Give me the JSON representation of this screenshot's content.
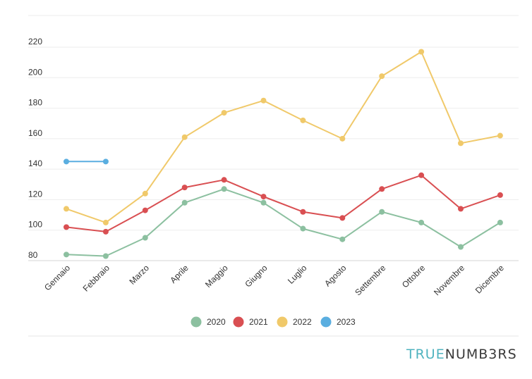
{
  "brand": {
    "part1": "TRUE",
    "part2": "NUMB3RS"
  },
  "chart_data": {
    "type": "line",
    "categories": [
      "Gennaio",
      "Febbraio",
      "Marzo",
      "Aprile",
      "Maggio",
      "Giugno",
      "Luglio",
      "Agosto",
      "Settembre",
      "Ottobre",
      "Novembre",
      "Dicembre"
    ],
    "series": [
      {
        "name": "2020",
        "color": "#8cc0a0",
        "values": [
          84,
          83,
          95,
          118,
          127,
          118,
          101,
          94,
          112,
          105,
          89,
          105
        ]
      },
      {
        "name": "2021",
        "color": "#d94f52",
        "values": [
          102,
          99,
          113,
          128,
          133,
          122,
          112,
          108,
          127,
          136,
          114,
          123
        ]
      },
      {
        "name": "2022",
        "color": "#f0c96a",
        "values": [
          114,
          105,
          124,
          161,
          177,
          185,
          172,
          160,
          201,
          217,
          157,
          162
        ]
      },
      {
        "name": "2023",
        "color": "#5aaee0",
        "values": [
          145,
          145,
          null,
          null,
          null,
          null,
          null,
          null,
          null,
          null,
          null,
          null
        ]
      }
    ],
    "yticks": [
      80,
      100,
      120,
      140,
      160,
      180,
      200,
      220
    ],
    "ylim": [
      80,
      220
    ],
    "grid": true,
    "legend_position": "bottom"
  }
}
